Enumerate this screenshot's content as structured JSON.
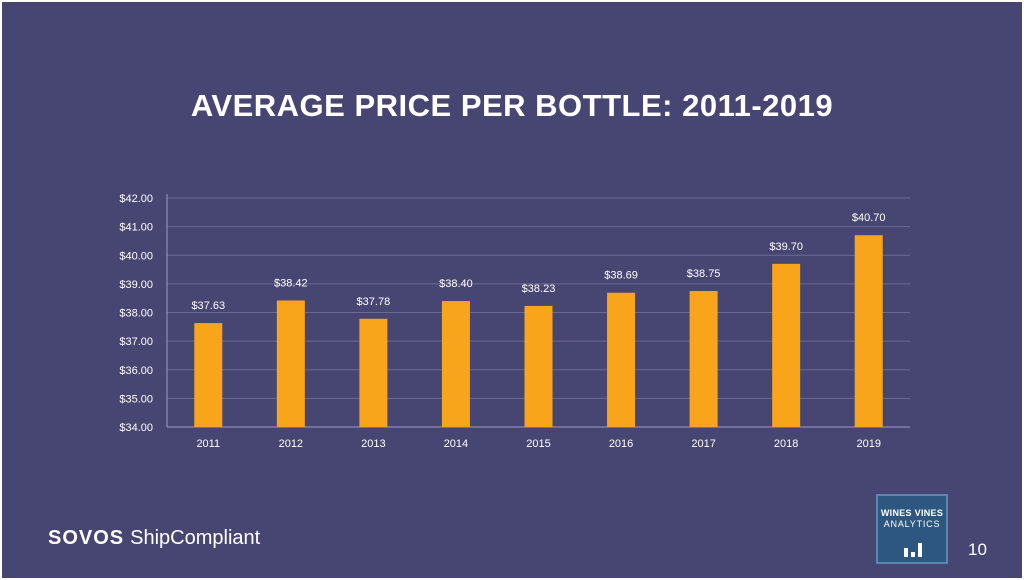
{
  "slide": {
    "title": "AVERAGE PRICE PER BOTTLE: 2011-2019",
    "page_number": "10"
  },
  "brand": {
    "left": "SOVOS",
    "right": "ShipCompliant"
  },
  "logo": {
    "line1": "WINES VINES",
    "line2": "ANALYTICS",
    "icon": "bar-chart-icon"
  },
  "colors": {
    "background": "#474672",
    "bar": "#F8A51C",
    "text": "#FFFFFF"
  },
  "chart_data": {
    "type": "bar",
    "categories": [
      "2011",
      "2012",
      "2013",
      "2014",
      "2015",
      "2016",
      "2017",
      "2018",
      "2019"
    ],
    "values": [
      37.63,
      38.42,
      37.78,
      38.4,
      38.23,
      38.69,
      38.75,
      39.7,
      40.7
    ],
    "data_labels": [
      "$37.63",
      "$38.42",
      "$37.78",
      "$38.40",
      "$38.23",
      "$38.69",
      "$38.75",
      "$39.70",
      "$40.70"
    ],
    "y_ticks": [
      34,
      35,
      36,
      37,
      38,
      39,
      40,
      41,
      42
    ],
    "y_tick_labels": [
      "$34.00",
      "$35.00",
      "$36.00",
      "$37.00",
      "$38.00",
      "$39.00",
      "$40.00",
      "$41.00",
      "$42.00"
    ],
    "ylim": [
      34,
      42
    ],
    "grid": true,
    "legend": "none"
  }
}
